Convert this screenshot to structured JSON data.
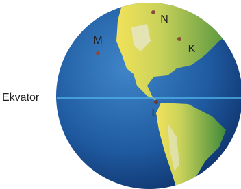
{
  "equator_label": "Ekvator",
  "points": [
    {
      "label": "N"
    },
    {
      "label": "K"
    },
    {
      "label": "M"
    },
    {
      "label": "L"
    }
  ]
}
